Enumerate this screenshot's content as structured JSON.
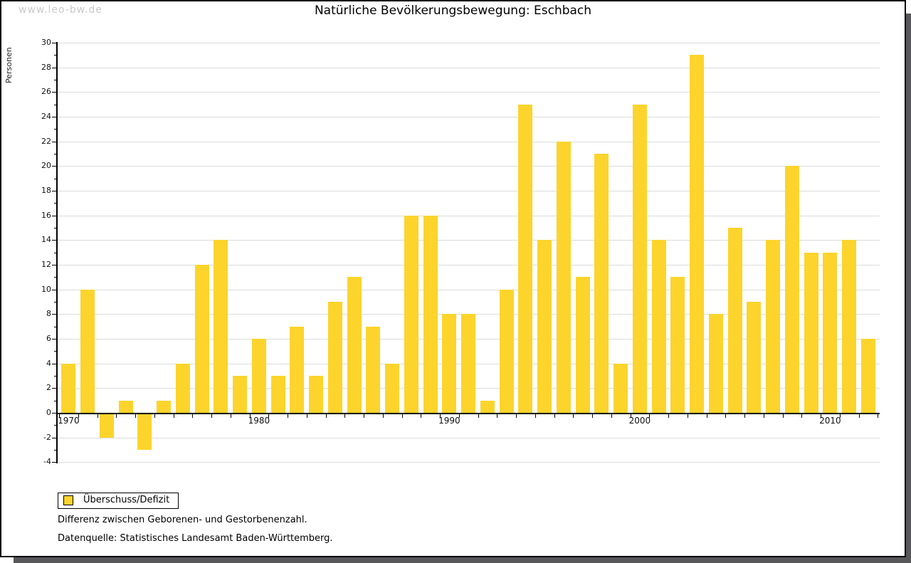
{
  "watermark": "www.leo-bw.de",
  "title": "Natürliche Bevölkerungsbewegung: Eschbach",
  "legend": {
    "label": "Überschuss/Defizit"
  },
  "notes": [
    "Differenz zwischen Geborenen- und Gestorbenenzahl.",
    "Datenquelle: Statistisches Landesamt Baden-Württemberg."
  ],
  "colors": {
    "bar": "#fcd42c",
    "grid": "#dcdcdc",
    "axis": "#000000",
    "watermark": "#c9c9c9",
    "shadow": "#58585b"
  },
  "chart_data": {
    "type": "bar",
    "title": "Natürliche Bevölkerungsbewegung: Eschbach",
    "xlabel": "",
    "ylabel": "Personen",
    "ylim": [
      -4,
      30
    ],
    "ytick_step": 2,
    "ytick_minor_step": 1,
    "grid": true,
    "legend_position": "bottom-left",
    "legend_entries": [
      "Überschuss/Defizit"
    ],
    "x": [
      1970,
      1971,
      1972,
      1973,
      1974,
      1975,
      1976,
      1977,
      1978,
      1979,
      1980,
      1981,
      1982,
      1983,
      1984,
      1985,
      1986,
      1987,
      1988,
      1989,
      1990,
      1991,
      1992,
      1993,
      1994,
      1995,
      1996,
      1997,
      1998,
      1999,
      2000,
      2001,
      2002,
      2003,
      2004,
      2005,
      2006,
      2007,
      2008,
      2009,
      2010,
      2011,
      2012
    ],
    "values": [
      4,
      10,
      -2,
      1,
      -3,
      1,
      4,
      12,
      14,
      3,
      6,
      3,
      7,
      3,
      9,
      11,
      7,
      4,
      16,
      16,
      8,
      8,
      1,
      10,
      25,
      14,
      22,
      11,
      21,
      4,
      25,
      14,
      11,
      29,
      8,
      15,
      9,
      14,
      20,
      13,
      13,
      14,
      6
    ],
    "xtick_labels": [
      "1970",
      "1980",
      "1990",
      "2000",
      "2010"
    ]
  }
}
